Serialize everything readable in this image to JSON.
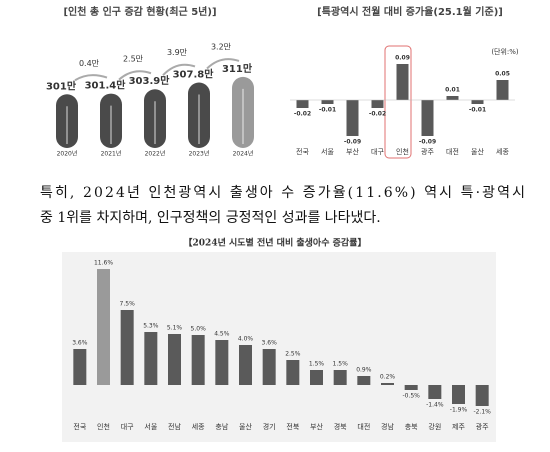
{
  "chart_data": [
    {
      "type": "bar",
      "title": "[인천 총 인구 증감 현황(최근 5년)]",
      "categories": [
        "2020년",
        "2021년",
        "2022년",
        "2023년",
        "2024년"
      ],
      "values": [
        301,
        301.4,
        303.9,
        307.8,
        311
      ],
      "value_labels": [
        "301만",
        "301.4만",
        "303.9만",
        "307.8만",
        "311만"
      ],
      "changes": [
        0.4,
        2.5,
        3.9,
        3.2
      ],
      "change_labels": [
        "0.4만",
        "2.5만",
        "3.9만",
        "3.2만"
      ],
      "colors": [
        "#4a4a4a",
        "#4a4a4a",
        "#4a4a4a",
        "#4a4a4a",
        "#9a9a9a"
      ],
      "ylim": [
        270,
        315
      ]
    },
    {
      "type": "bar",
      "title": "[특광역시 전월 대비 증가율(25.1월 기준)]",
      "unit_label": "(단위:%)",
      "categories": [
        "전국",
        "서울",
        "부산",
        "대구",
        "인천",
        "광주",
        "대전",
        "울산",
        "세종"
      ],
      "values": [
        -0.02,
        -0.01,
        -0.09,
        -0.02,
        0.09,
        -0.09,
        0.01,
        -0.01,
        0.05
      ],
      "color": "#595959",
      "highlight": "인천",
      "ylim": [
        -0.1,
        0.1
      ]
    },
    {
      "type": "bar",
      "title": "【2024년 시도별 전년 대비 출생아수 증감률】",
      "categories": [
        "전국",
        "인천",
        "대구",
        "서울",
        "전남",
        "세종",
        "충남",
        "울산",
        "경기",
        "전북",
        "부산",
        "경북",
        "대전",
        "경남",
        "충북",
        "강원",
        "제주",
        "광주"
      ],
      "values": [
        3.6,
        11.6,
        7.5,
        5.3,
        5.1,
        5.0,
        4.5,
        4.0,
        3.6,
        2.5,
        1.5,
        1.5,
        0.9,
        0.2,
        -0.5,
        -1.4,
        -1.9,
        -2.1
      ],
      "value_labels": [
        "3.6%",
        "11.6%",
        "7.5%",
        "5.3%",
        "5.1%",
        "5.0%",
        "4.5%",
        "4.0%",
        "3.6%",
        "2.5%",
        "1.5%",
        "1.5%",
        "0.9%",
        "0.2%",
        "-0.5%",
        "-1.4%",
        "-1.9%",
        "-2.1%"
      ],
      "colors": [
        "#5a5a5a",
        "#9a9a9a",
        "#5a5a5a",
        "#5a5a5a",
        "#5a5a5a",
        "#5a5a5a",
        "#5a5a5a",
        "#5a5a5a",
        "#5a5a5a",
        "#5a5a5a",
        "#5a5a5a",
        "#5a5a5a",
        "#5a5a5a",
        "#5a5a5a",
        "#5a5a5a",
        "#5a5a5a",
        "#5a5a5a",
        "#5a5a5a"
      ],
      "ylim": [
        -3,
        12.5
      ]
    }
  ],
  "paragraph": [
    "특히, 2024년 인천광역시 출생아 수 증가율(11.6%) 역시 특·광역시",
    "중 1위를 차지하며, 인구정책의 긍정적인 성과를 나타냈다."
  ]
}
